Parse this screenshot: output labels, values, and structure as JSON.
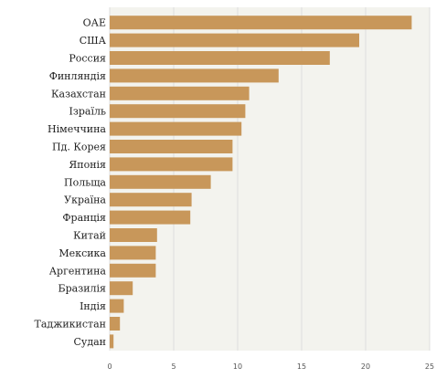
{
  "chart_data": {
    "type": "bar",
    "orientation": "horizontal",
    "title": "",
    "xlabel": "",
    "ylabel": "",
    "categories": [
      "ОАЕ",
      "США",
      "Россия",
      "Финляндія",
      "Казахстан",
      "Ізраїль",
      "Німеччина",
      "Пд. Корея",
      "Японія",
      "Польща",
      "Україна",
      "Франція",
      "Китай",
      "Мексика",
      "Аргентина",
      "Бразилія",
      "Індія",
      "Таджикистан",
      "Судан"
    ],
    "values": [
      23.6,
      19.5,
      17.2,
      13.2,
      10.9,
      10.6,
      10.3,
      9.6,
      9.6,
      7.9,
      6.4,
      6.3,
      3.7,
      3.6,
      3.6,
      1.8,
      1.1,
      0.8,
      0.3
    ],
    "xlim": [
      0,
      25
    ],
    "xticks": [
      0,
      5,
      10,
      15,
      20,
      25
    ],
    "grid": true,
    "colors": {
      "bar": "#c8975a",
      "plot_background": "#f3f3ee",
      "gridline": "#dddddd"
    }
  }
}
